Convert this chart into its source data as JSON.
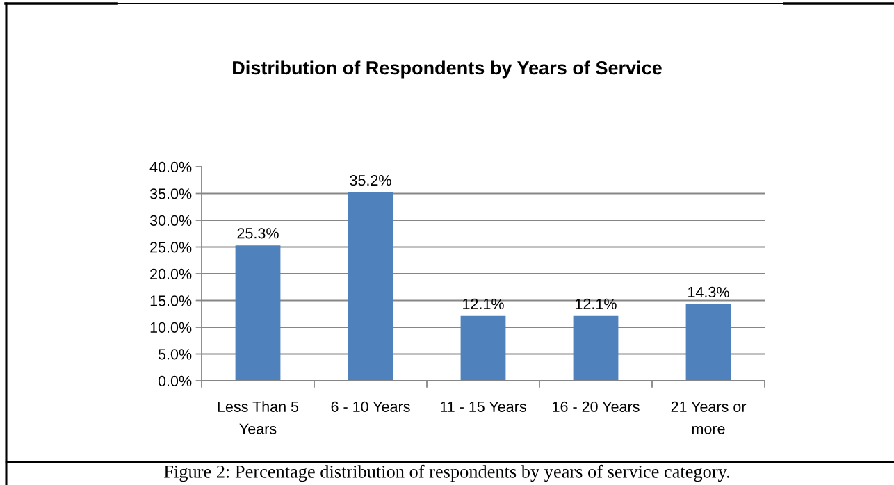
{
  "chart_data": {
    "type": "bar",
    "title": "Distribution of Respondents by Years of Service",
    "categories": [
      "Less Than 5\nYears",
      "6 - 10 Years",
      "11 - 15 Years",
      "16 - 20 Years",
      "21 Years or\nmore"
    ],
    "values": [
      25.3,
      35.2,
      12.1,
      12.1,
      14.3
    ],
    "value_labels": [
      "25.3%",
      "35.2%",
      "12.1%",
      "12.1%",
      "14.3%"
    ],
    "color": "#4f81bd",
    "ylim": [
      0,
      40
    ],
    "yticks": [
      {
        "value": 0,
        "label": "0.0%"
      },
      {
        "value": 5,
        "label": "5.0%"
      },
      {
        "value": 10,
        "label": "10.0%"
      },
      {
        "value": 15,
        "label": "15.0%"
      },
      {
        "value": 20,
        "label": "20.0%"
      },
      {
        "value": 25,
        "label": "25.0%"
      },
      {
        "value": 30,
        "label": "30.0%"
      },
      {
        "value": 35,
        "label": "35.0%"
      },
      {
        "value": 40,
        "label": "40.0%"
      }
    ],
    "grid": "y",
    "annotations": [
      "Figure 2: Percentage distribution of respondents by years of service category."
    ]
  }
}
